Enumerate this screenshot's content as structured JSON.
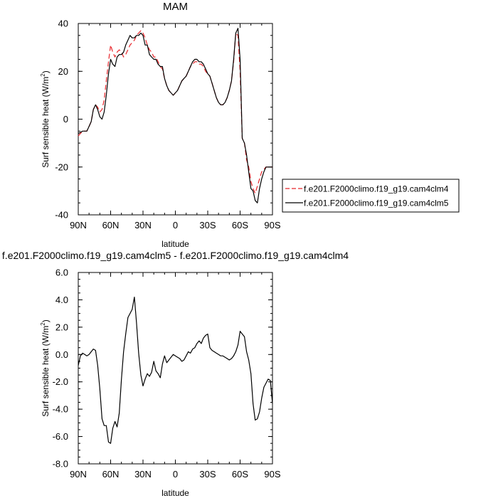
{
  "chart_data": [
    {
      "type": "line",
      "title": "MAM",
      "xlabel": "latitude",
      "ylabel_main": "Surf sensible heat (W/m",
      "ylabel_sup": "2",
      "ylabel_close": ")",
      "xlim": [
        -90,
        90
      ],
      "ylim": [
        -40,
        40
      ],
      "xticks": [
        -90,
        -60,
        -30,
        0,
        30,
        60,
        90
      ],
      "xtick_labels": [
        "90N",
        "60N",
        "30N",
        "0",
        "30S",
        "60S",
        "90S"
      ],
      "yticks": [
        -40,
        -20,
        0,
        20,
        40
      ],
      "ytick_labels": [
        "-40",
        "-20",
        "0",
        "20",
        "40"
      ],
      "legend_position": "right",
      "series": [
        {
          "name": "f.e201.F2000climo.f19_g19.cam4clm4",
          "color": "#e8262b",
          "dash": "dashed",
          "x": [
            -90,
            -88,
            -86,
            -84,
            -82,
            -80,
            -78,
            -76,
            -74,
            -72,
            -70,
            -68,
            -66,
            -64,
            -62,
            -60,
            -58,
            -56,
            -54,
            -52,
            -50,
            -48,
            -46,
            -44,
            -42,
            -40,
            -38,
            -36,
            -34,
            -32,
            -30,
            -28,
            -26,
            -24,
            -22,
            -20,
            -18,
            -16,
            -14,
            -12,
            -10,
            -8,
            -6,
            -4,
            -2,
            0,
            2,
            4,
            6,
            8,
            10,
            12,
            14,
            16,
            18,
            20,
            22,
            24,
            26,
            28,
            30,
            32,
            34,
            36,
            38,
            40,
            42,
            44,
            46,
            48,
            50,
            52,
            54,
            56,
            58,
            60,
            62,
            64,
            66,
            68,
            70,
            72,
            74,
            76,
            78,
            80,
            82,
            84,
            86,
            88,
            90
          ],
          "y": [
            -7,
            -6,
            -5,
            -5,
            -5,
            -3,
            -1,
            4,
            6,
            5,
            3,
            4,
            8,
            16,
            24,
            31,
            28,
            26,
            28,
            29,
            28,
            26,
            27,
            29,
            31,
            32,
            33,
            35,
            36,
            37,
            36,
            34,
            31,
            29,
            28,
            26,
            26,
            24,
            22,
            21,
            17,
            14,
            12,
            11,
            10,
            11,
            12,
            14,
            16,
            17,
            18,
            20,
            22,
            23,
            24,
            24,
            23,
            23,
            22,
            20,
            19,
            18,
            15,
            12,
            9,
            7,
            6,
            6,
            7,
            9,
            12,
            16,
            24,
            36,
            35,
            20,
            -8,
            -10,
            -17,
            -20,
            -26,
            -29,
            -31,
            -28,
            -25,
            -22,
            -21,
            -20,
            -20,
            -20,
            -20
          ]
        },
        {
          "name": "f.e201.F2000climo.f19_g19.cam4clm5",
          "color": "#000000",
          "dash": "solid",
          "x": [
            -90,
            -88,
            -86,
            -84,
            -82,
            -80,
            -78,
            -76,
            -74,
            -72,
            -70,
            -68,
            -66,
            -64,
            -62,
            -60,
            -58,
            -56,
            -54,
            -52,
            -50,
            -48,
            -46,
            -44,
            -42,
            -40,
            -38,
            -36,
            -34,
            -32,
            -30,
            -28,
            -26,
            -24,
            -22,
            -20,
            -18,
            -16,
            -14,
            -12,
            -10,
            -8,
            -6,
            -4,
            -2,
            0,
            2,
            4,
            6,
            8,
            10,
            12,
            14,
            16,
            18,
            20,
            22,
            24,
            26,
            28,
            30,
            32,
            34,
            36,
            38,
            40,
            42,
            44,
            46,
            48,
            50,
            52,
            54,
            56,
            58,
            60,
            62,
            64,
            66,
            68,
            70,
            72,
            74,
            76,
            78,
            80,
            82,
            84,
            86,
            88,
            90
          ],
          "y": [
            -6,
            -5.5,
            -5,
            -5,
            -5,
            -3,
            -1,
            4,
            6,
            4,
            1,
            0,
            3,
            10,
            19,
            25,
            23,
            22,
            26,
            27,
            27,
            28,
            31,
            33,
            35,
            34,
            34,
            35,
            35,
            36,
            35,
            31,
            31,
            27,
            26,
            25,
            25,
            23,
            22,
            22,
            17,
            14,
            12,
            11,
            10,
            11,
            12,
            14,
            16,
            17,
            18,
            20,
            22,
            24,
            25,
            25,
            24,
            24,
            23,
            21,
            19,
            18,
            15,
            12,
            9,
            7,
            6,
            6,
            7,
            9,
            12,
            16,
            25,
            36,
            38,
            25,
            -8,
            -10,
            -15,
            -22,
            -29,
            -30,
            -34,
            -35,
            -29,
            -25,
            -22,
            -20,
            -20,
            -20,
            -20
          ]
        }
      ]
    },
    {
      "type": "line",
      "title": "f.e201.F2000climo.f19_g19.cam4clm5 - f.e201.F2000climo.f19_g19.cam4clm4",
      "xlabel": "latitude",
      "ylabel_main": "Surf sensible heat (W/m",
      "ylabel_sup": "2",
      "ylabel_close": ")",
      "xlim": [
        -90,
        90
      ],
      "ylim": [
        -8,
        6
      ],
      "xticks": [
        -90,
        -60,
        -30,
        0,
        30,
        60,
        90
      ],
      "xtick_labels": [
        "90N",
        "60N",
        "30N",
        "0",
        "30S",
        "60S",
        "90S"
      ],
      "yticks": [
        -8,
        -6,
        -4,
        -2,
        0,
        2,
        4,
        6
      ],
      "ytick_labels": [
        "-8.0",
        "-6.0",
        "-4.0",
        "-2.0",
        "0.0",
        "2.0",
        "4.0",
        "6.0"
      ],
      "series": [
        {
          "color": "#000000",
          "dash": "solid",
          "x": [
            -90,
            -88,
            -86,
            -84,
            -82,
            -80,
            -78,
            -76,
            -74,
            -72,
            -70,
            -68,
            -66,
            -64,
            -62,
            -60,
            -58,
            -56,
            -54,
            -52,
            -50,
            -48,
            -46,
            -44,
            -42,
            -40,
            -38,
            -36,
            -34,
            -32,
            -30,
            -28,
            -26,
            -24,
            -22,
            -20,
            -18,
            -16,
            -14,
            -12,
            -10,
            -8,
            -6,
            -4,
            -2,
            0,
            2,
            4,
            6,
            8,
            10,
            12,
            14,
            16,
            18,
            20,
            22,
            24,
            26,
            28,
            30,
            32,
            34,
            36,
            38,
            40,
            42,
            44,
            46,
            48,
            50,
            52,
            54,
            56,
            58,
            60,
            62,
            64,
            66,
            68,
            70,
            72,
            74,
            76,
            78,
            80,
            82,
            84,
            86,
            88,
            90
          ],
          "y": [
            -0.8,
            -0.1,
            0.1,
            0.0,
            -0.1,
            0.0,
            0.2,
            0.4,
            0.3,
            -0.8,
            -2.5,
            -4.7,
            -5.2,
            -5.2,
            -6.4,
            -6.5,
            -5.4,
            -4.9,
            -5.3,
            -4.3,
            -1.8,
            0.2,
            1.5,
            2.7,
            3.0,
            3.3,
            4.2,
            2.3,
            0.1,
            -1.5,
            -2.3,
            -1.8,
            -1.4,
            -1.6,
            -1.3,
            -0.5,
            -1.2,
            -1.4,
            -1.7,
            -0.7,
            -0.1,
            -0.6,
            -0.4,
            -0.2,
            0.0,
            -0.1,
            -0.2,
            -0.3,
            -0.5,
            -0.4,
            -0.1,
            0.2,
            0.1,
            0.4,
            0.5,
            0.8,
            1.0,
            0.8,
            1.2,
            1.4,
            1.5,
            0.5,
            0.3,
            0.2,
            0.1,
            0.0,
            -0.1,
            -0.1,
            -0.2,
            -0.3,
            -0.4,
            -0.3,
            -0.1,
            0.2,
            0.7,
            1.7,
            1.5,
            1.3,
            0.2,
            -0.4,
            -1.4,
            -3.6,
            -4.8,
            -4.7,
            -4.2,
            -3.2,
            -2.4,
            -2.1,
            -1.8,
            -1.9,
            -3.6
          ]
        }
      ]
    }
  ]
}
